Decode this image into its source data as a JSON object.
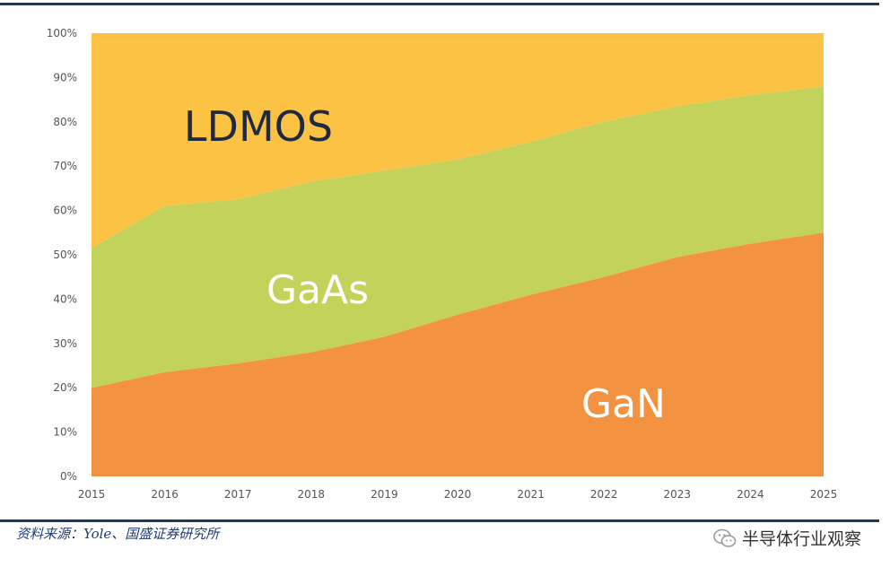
{
  "chart_data": {
    "type": "area",
    "stacked": true,
    "normalized": true,
    "x": [
      2015,
      2016,
      2017,
      2018,
      2019,
      2020,
      2021,
      2022,
      2023,
      2024,
      2025
    ],
    "x_tick_labels": [
      "2015",
      "2016",
      "2017",
      "2018",
      "2019",
      "2020",
      "2021",
      "2022",
      "2023",
      "2024",
      "2025"
    ],
    "ylim": [
      0,
      100
    ],
    "y_ticks": [
      0,
      10,
      20,
      30,
      40,
      50,
      60,
      70,
      80,
      90,
      100
    ],
    "y_tick_labels": [
      "0%",
      "10%",
      "20%",
      "30%",
      "40%",
      "50%",
      "60%",
      "70%",
      "80%",
      "90%",
      "100%"
    ],
    "series": [
      {
        "name": "GaN",
        "color": "#f39241",
        "label_color": "#ffffff",
        "values": [
          20,
          23.5,
          25.5,
          28,
          31.5,
          36.5,
          41,
          45,
          49.5,
          52.5,
          55
        ]
      },
      {
        "name": "GaAs",
        "color": "#c2d25a",
        "label_color": "#ffffff",
        "values": [
          31.5,
          37.5,
          37,
          38.5,
          37.5,
          35,
          34.5,
          35,
          34,
          33.5,
          33
        ]
      },
      {
        "name": "LDMOS",
        "color": "#fbc243",
        "label_color": "#1f2a40",
        "values": [
          48.5,
          39,
          37.5,
          33.5,
          31,
          28.5,
          24.5,
          20,
          16.5,
          14,
          12
        ]
      }
    ],
    "grid": false,
    "legend": "in-chart labels"
  },
  "footer": {
    "source": "资料来源：Yole、国盛证券研究所",
    "watermark": "半导体行业观察",
    "watermark_icon": "wechat-icon"
  }
}
